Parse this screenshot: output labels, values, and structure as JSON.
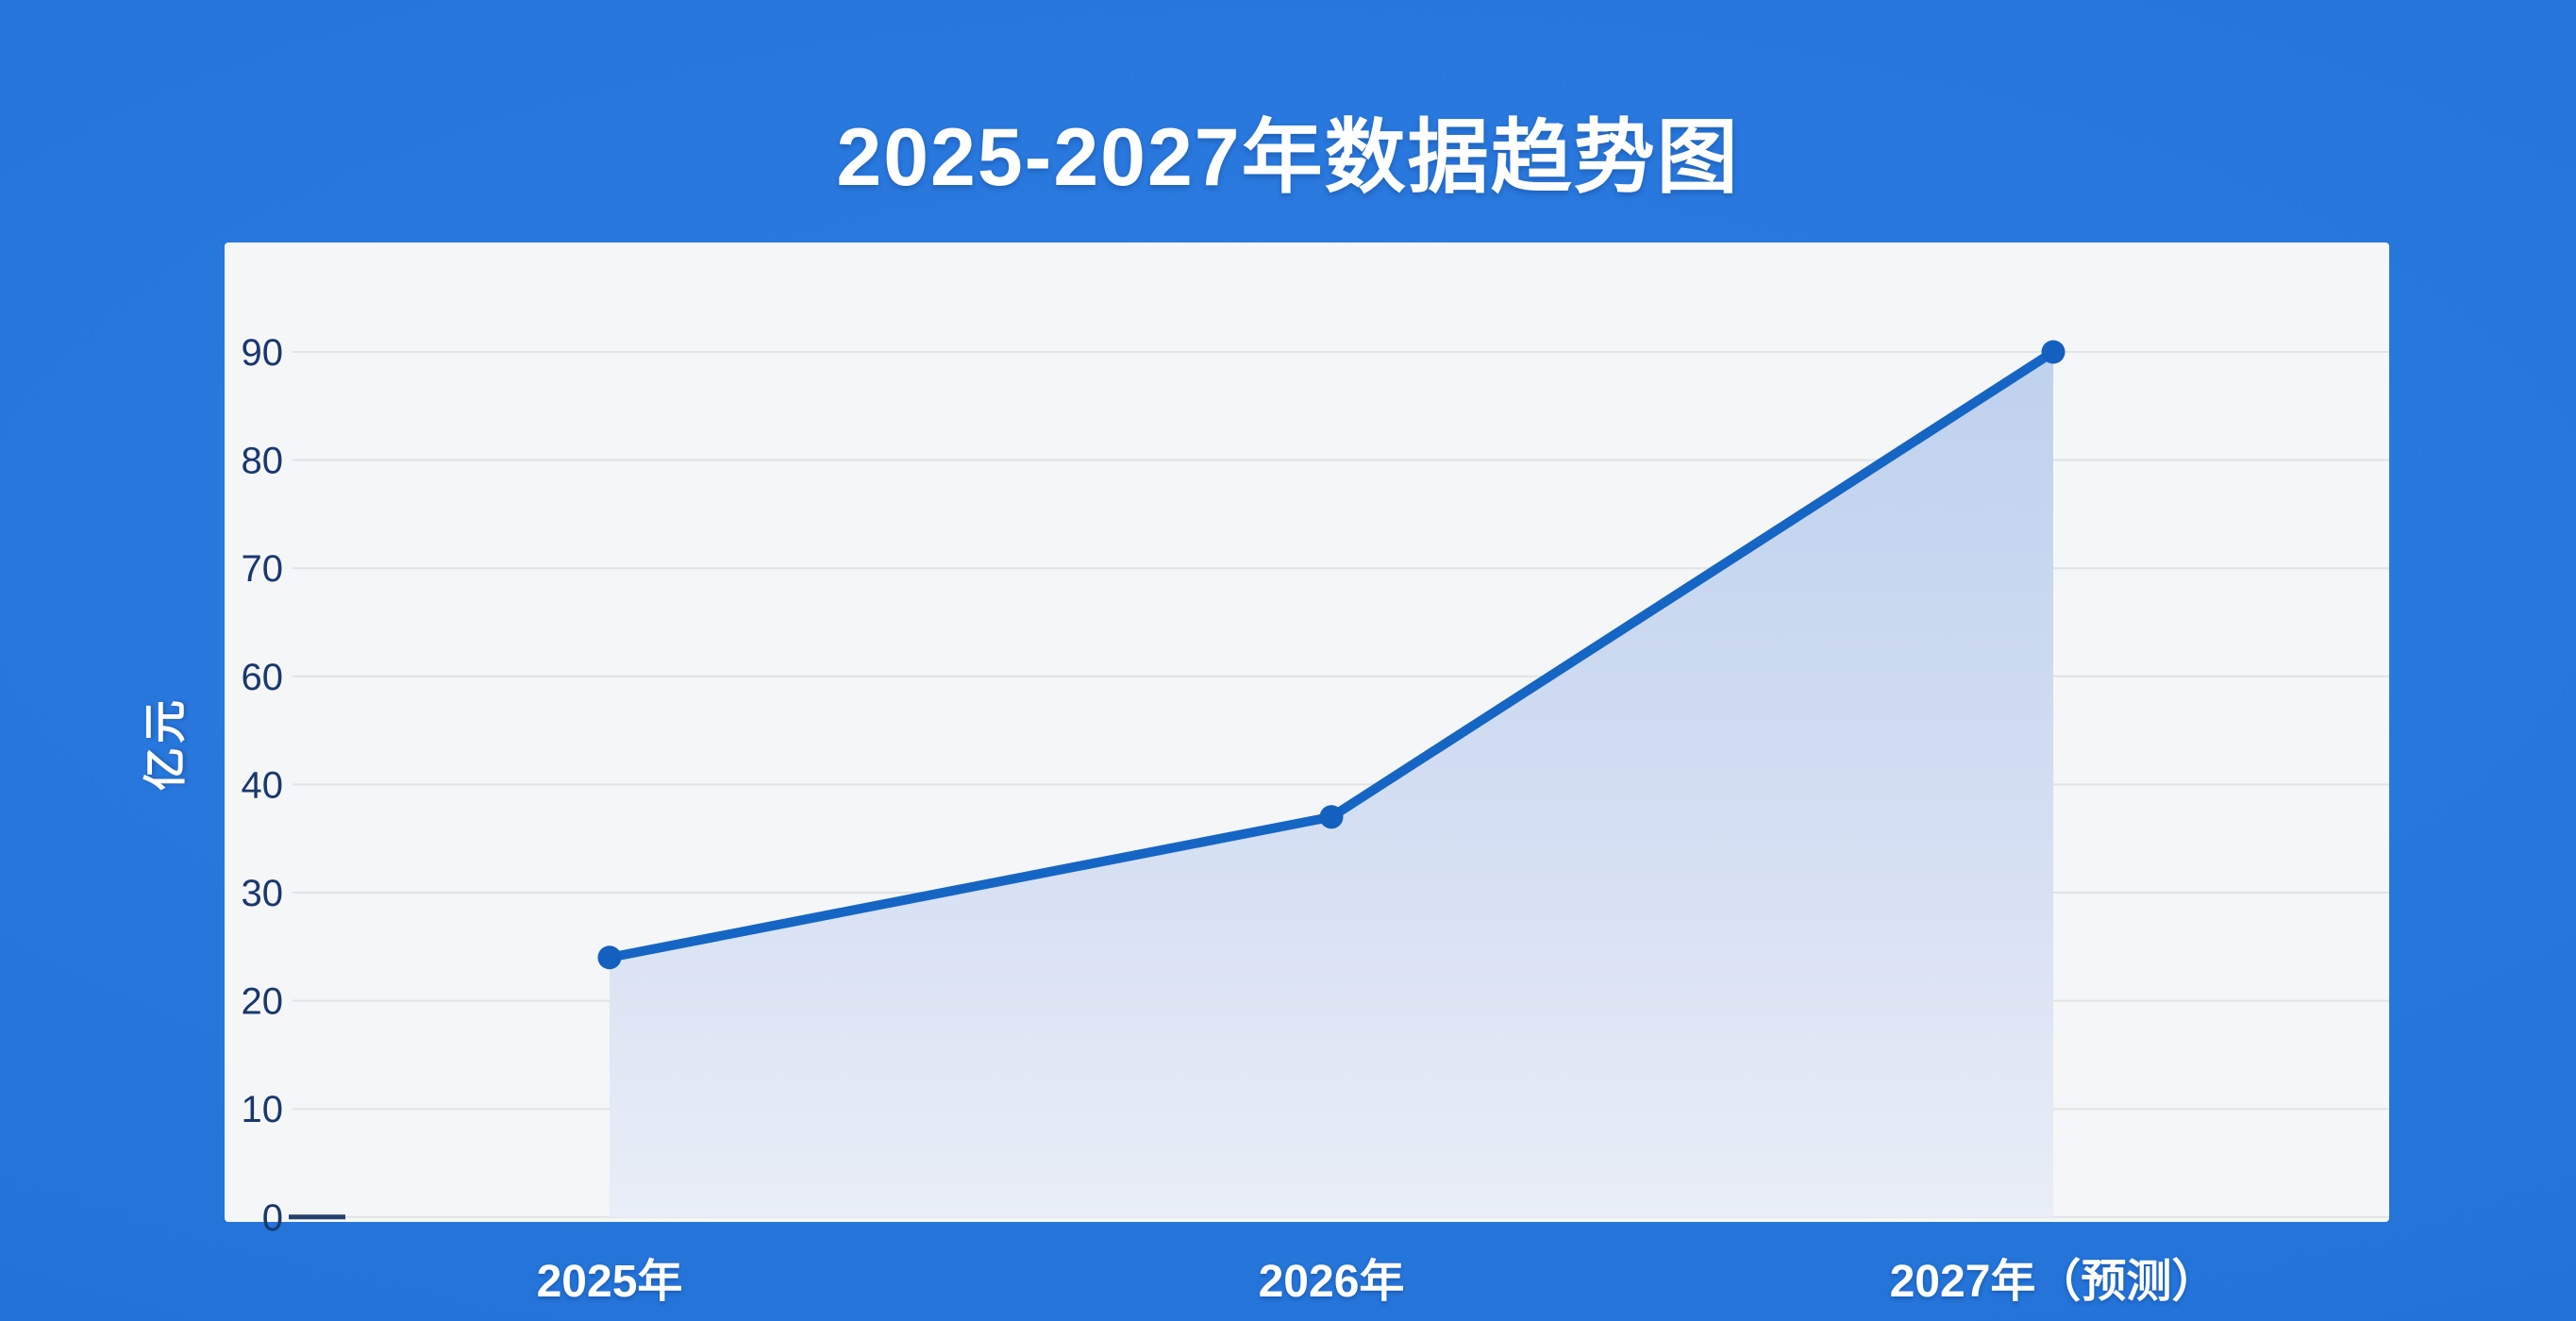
{
  "chart_data": {
    "type": "area",
    "title": "2025-2027年数据趋势图",
    "categories": [
      "2025年",
      "2026年",
      "2027年（预测）"
    ],
    "values": [
      24,
      37,
      90
    ],
    "xlabel": "",
    "ylabel": "亿元",
    "y_tick_labels": [
      "0",
      "10",
      "20",
      "30",
      "40",
      "60",
      "70",
      "80",
      "90"
    ],
    "y_ticks": [
      0,
      10,
      20,
      30,
      40,
      60,
      70,
      80,
      90
    ],
    "ylim": [
      0,
      100
    ],
    "grid": true,
    "legend": false
  },
  "colors": {
    "page_background": "#2272d8",
    "card_background": "#f5f6f7",
    "line": "#1565c4",
    "marker": "#1460bf",
    "area_top": "#bed1ee",
    "area_mid": "#d2ddf2",
    "area_bottom": "#e9eef7",
    "gridline": "#e0e2e5",
    "tick_label": "#18386e",
    "zero_tick": "#23406e",
    "title_text": "#ffffff"
  }
}
